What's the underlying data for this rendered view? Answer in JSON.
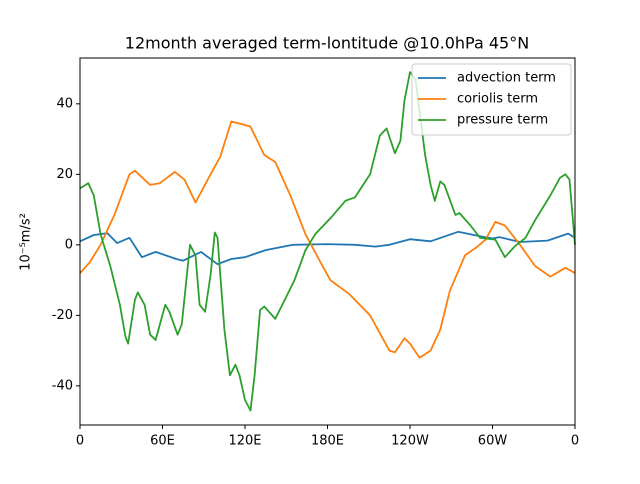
{
  "chart_data": {
    "type": "line",
    "title": "12month averaged term-lontitude @10.0hPa 45°N",
    "ylabel": "10⁻⁵m/s²",
    "xlim": [
      0,
      360
    ],
    "ylim": [
      -51.1,
      53
    ],
    "xticks": [
      0,
      {
        "value": 60,
        "label": "60E"
      },
      {
        "value": 120,
        "label": "120E"
      },
      {
        "value": 180,
        "label": "180E"
      },
      {
        "value": 240,
        "label": "120W"
      },
      {
        "value": 300,
        "label": "60W"
      },
      {
        "value": 360,
        "label": "0"
      }
    ],
    "yticks": [
      -40,
      -20,
      0,
      20,
      40
    ],
    "grid": false,
    "legend": "upper right",
    "series": [
      {
        "name": "advection term",
        "color": "#1f77b4",
        "x": [
          0,
          10,
          20,
          27,
          36,
          45,
          55,
          70,
          75,
          88,
          100,
          110,
          120,
          135,
          155,
          180,
          200,
          215,
          225,
          240,
          255,
          275,
          290,
          300,
          305,
          320,
          340,
          355,
          360
        ],
        "values": [
          1,
          2.8,
          3.3,
          0.5,
          2,
          -3.5,
          -2,
          -4,
          -4.5,
          -2,
          -5.5,
          -4,
          -3.5,
          -1.5,
          0,
          0.2,
          0,
          -0.5,
          0,
          1.6,
          1,
          3.7,
          2.5,
          1.8,
          2.2,
          0.8,
          1.2,
          3.2,
          2
        ]
      },
      {
        "name": "coriolis term",
        "color": "#ff7f0e",
        "x": [
          0,
          7,
          15,
          25,
          36,
          40,
          51,
          58,
          69,
          76,
          84,
          95,
          102,
          110,
          120,
          124,
          134,
          142,
          153,
          164,
          175,
          182,
          196,
          211,
          225,
          229,
          236,
          240,
          247,
          255,
          262,
          269,
          280,
          289,
          295,
          302,
          309,
          320,
          331,
          342,
          353,
          360
        ],
        "values": [
          -8,
          -5,
          0,
          8.5,
          20,
          21,
          17,
          17.5,
          20.7,
          18.5,
          12,
          20,
          25,
          35,
          34,
          33.5,
          25.5,
          23.5,
          14,
          3,
          -5,
          -10,
          -14,
          -20,
          -30,
          -30.5,
          -26.5,
          -28,
          -32,
          -30,
          -24,
          -13,
          -3,
          -0.5,
          1.5,
          6.5,
          5.5,
          0,
          -6,
          -9,
          -6.5,
          -8
        ]
      },
      {
        "name": "pressure term",
        "color": "#2ca02c",
        "x": [
          0,
          6,
          10,
          15,
          22,
          29,
          33,
          35,
          40,
          42,
          47,
          51,
          55,
          62,
          65,
          71,
          74,
          80,
          84,
          87,
          91,
          95,
          98,
          100,
          105,
          109,
          113,
          116,
          120,
          124,
          127,
          131,
          134,
          142,
          149,
          156,
          164,
          171,
          182,
          193,
          200,
          211,
          218,
          223,
          229,
          233,
          236,
          240,
          244,
          251,
          255,
          258,
          262,
          265,
          273,
          276,
          284,
          291,
          302,
          309,
          316,
          324,
          331,
          342,
          349,
          353,
          356,
          360
        ],
        "values": [
          16,
          17.5,
          14,
          3,
          -6,
          -17,
          -26,
          -28,
          -15.5,
          -13.5,
          -17,
          -25.5,
          -27,
          -17,
          -19,
          -25.5,
          -22.5,
          0,
          -3,
          -17,
          -19,
          -8.5,
          3.5,
          2,
          -24,
          -37,
          -34,
          -37,
          -44,
          -47,
          -37,
          -18.5,
          -17.5,
          -21,
          -15.5,
          -10,
          -1.5,
          3,
          7.5,
          12.5,
          13.5,
          20,
          31,
          33,
          26,
          29.5,
          41,
          49,
          47,
          25.5,
          17,
          12.5,
          18,
          17,
          8.5,
          9,
          5.5,
          2,
          1.5,
          -3.5,
          -0.5,
          2,
          7,
          14,
          19,
          20,
          18.5,
          0
        ]
      }
    ]
  }
}
